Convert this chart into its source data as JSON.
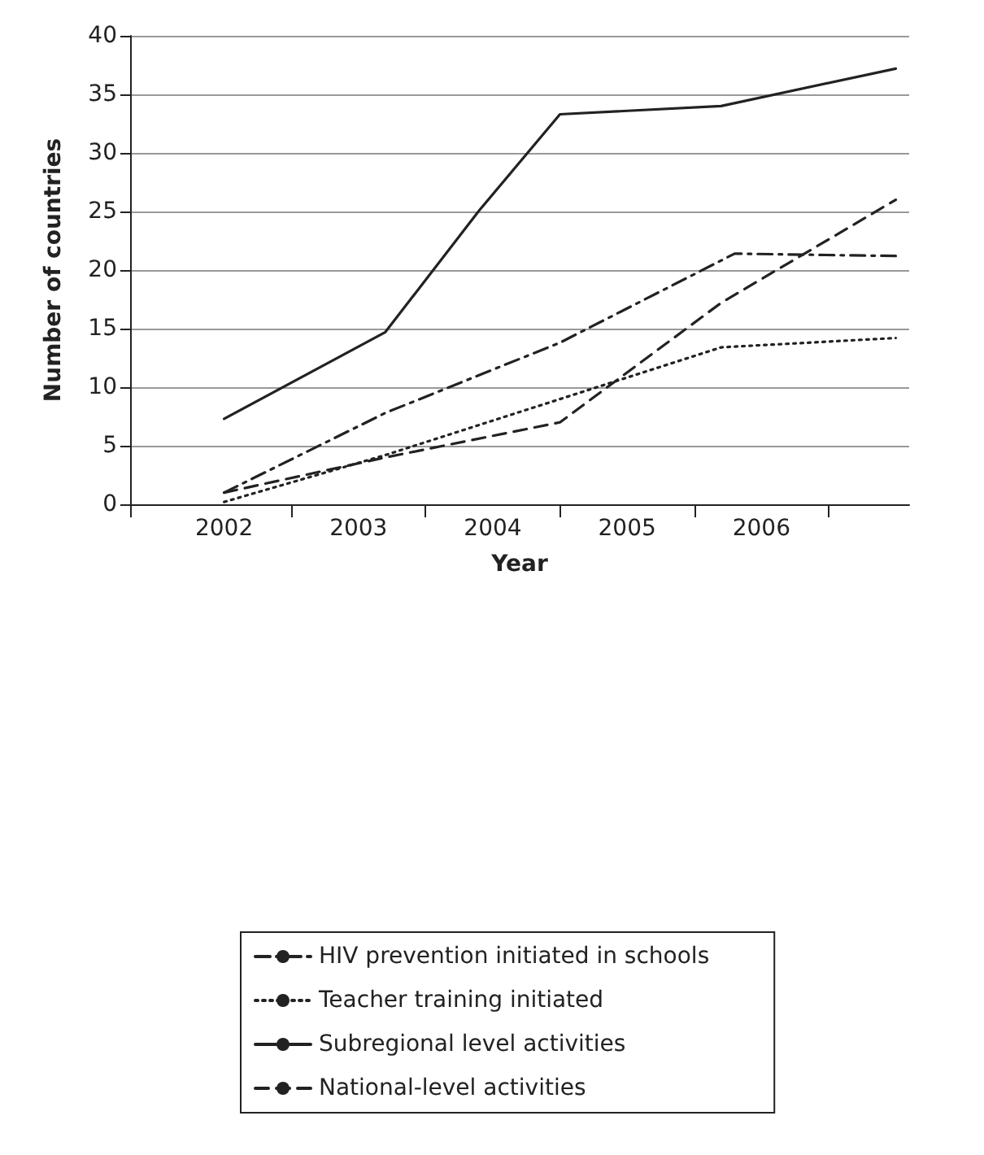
{
  "chart_data": {
    "type": "line",
    "xlabel": "Year",
    "ylabel": "Number of countries",
    "xlim": [
      2001.3,
      2007.1
    ],
    "xticks": [
      {
        "value": 2002,
        "label": "2002"
      },
      {
        "value": 2003,
        "label": "2003"
      },
      {
        "value": 2004,
        "label": "2004"
      },
      {
        "value": 2005,
        "label": "2005"
      },
      {
        "value": 2006,
        "label": "2006"
      },
      {
        "value": 2001.3,
        "label": null
      },
      {
        "value": 2002.5,
        "label": null
      },
      {
        "value": 2003.5,
        "label": null
      },
      {
        "value": 2004.5,
        "label": null
      },
      {
        "value": 2005.5,
        "label": null
      },
      {
        "value": 2006.5,
        "label": null
      }
    ],
    "ylim": [
      0,
      40
    ],
    "yticks": [
      0,
      5,
      10,
      15,
      20,
      25,
      30,
      35,
      40
    ],
    "grid": "y",
    "legend": "bottom",
    "marker": "none",
    "series": [
      {
        "name": "HIV prevention initiated in schools",
        "color": "#222222",
        "line_style": "dashdot",
        "x": [
          2002,
          2003.2,
          2004.5,
          2005.8,
          2007
        ],
        "values": [
          1,
          7.8,
          13.8,
          21.4,
          21.2
        ]
      },
      {
        "name": "Teacher training initiated",
        "color": "#222222",
        "line_style": "dotted",
        "x": [
          2002,
          2003.2,
          2005.7,
          2007
        ],
        "values": [
          0.2,
          4.2,
          13.4,
          14.2
        ]
      },
      {
        "name": "Subregional level activities",
        "color": "#222222",
        "line_style": "solid",
        "x": [
          2002,
          2003.2,
          2003.9,
          2004.5,
          2005.7,
          2007
        ],
        "values": [
          7.3,
          14.7,
          25.1,
          33.3,
          34,
          37.2
        ]
      },
      {
        "name": "National-level activities",
        "color": "#222222",
        "line_style": "dashed",
        "x": [
          2002,
          2003.2,
          2004.5,
          2005.7,
          2007
        ],
        "values": [
          1,
          4,
          7,
          17.2,
          26
        ]
      }
    ]
  }
}
